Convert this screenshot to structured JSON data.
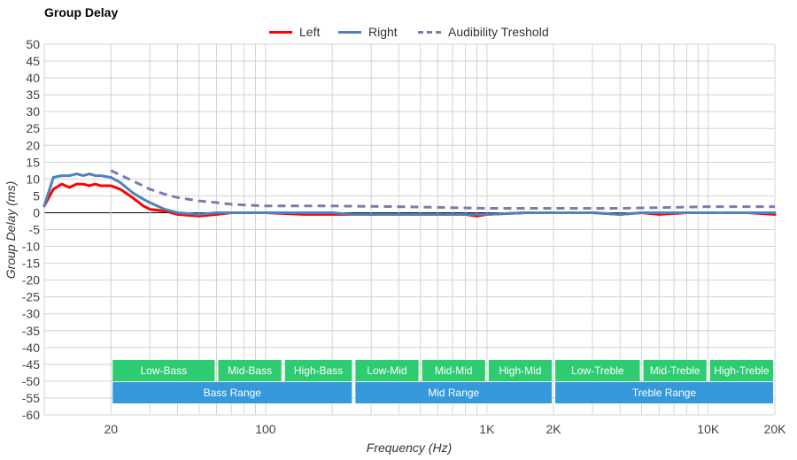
{
  "chart_data": {
    "type": "line",
    "title": "Group Delay",
    "xlabel": "Frequency (Hz)",
    "ylabel": "Group Delay (ms)",
    "x_scale": "log",
    "xlim": [
      10,
      20000
    ],
    "ylim": [
      -60,
      50
    ],
    "y_ticks": [
      50,
      45,
      40,
      35,
      30,
      25,
      20,
      15,
      10,
      5,
      0,
      -5,
      -10,
      -15,
      -20,
      -25,
      -30,
      -35,
      -40,
      -45,
      -50,
      -55,
      -60
    ],
    "x_tick_labels": [
      {
        "value": 20,
        "label": "20"
      },
      {
        "value": 100,
        "label": "100"
      },
      {
        "value": 1000,
        "label": "1K"
      },
      {
        "value": 2000,
        "label": "2K"
      },
      {
        "value": 10000,
        "label": "10K"
      },
      {
        "value": 20000,
        "label": "20K"
      }
    ],
    "grid": true,
    "legend_position": "top-center",
    "series": [
      {
        "name": "Left",
        "color": "#ff0000",
        "style": "solid",
        "x": [
          10,
          11,
          12,
          13,
          14,
          15,
          16,
          17,
          18,
          20,
          22,
          25,
          28,
          30,
          35,
          40,
          50,
          60,
          70,
          80,
          100,
          150,
          200,
          250,
          300,
          400,
          600,
          800,
          900,
          1000,
          1500,
          2000,
          3000,
          4000,
          5000,
          6000,
          8000,
          10000,
          15000,
          20000
        ],
        "y": [
          2,
          7,
          8.5,
          7.5,
          8.5,
          8.5,
          8,
          8.5,
          8,
          8,
          7,
          4.5,
          2,
          1,
          0.5,
          -0.5,
          -1,
          -0.5,
          0,
          0,
          0,
          -0.5,
          -0.5,
          -0.5,
          -0.5,
          -0.5,
          -0.5,
          -0.5,
          -1,
          -0.5,
          0,
          0,
          0,
          -0.5,
          0,
          -0.5,
          0,
          0,
          0,
          -0.5
        ]
      },
      {
        "name": "Right",
        "color": "#4f81bd",
        "style": "solid",
        "x": [
          10,
          11,
          12,
          13,
          14,
          15,
          16,
          17,
          18,
          20,
          22,
          25,
          28,
          30,
          35,
          40,
          50,
          60,
          70,
          80,
          100,
          150,
          200,
          250,
          300,
          400,
          600,
          800,
          900,
          1000,
          1500,
          2000,
          3000,
          4000,
          5000,
          6000,
          8000,
          10000,
          15000,
          20000
        ],
        "y": [
          2,
          10.5,
          11,
          11,
          11.5,
          11,
          11.5,
          11,
          11,
          10.5,
          9,
          6,
          4,
          3,
          1,
          0,
          -0.5,
          0,
          0,
          0,
          0,
          0,
          0,
          -0.5,
          -0.5,
          -0.5,
          -0.5,
          -0.5,
          -0.5,
          -0.5,
          0,
          0,
          0,
          -0.5,
          0,
          0,
          0,
          0,
          0,
          0
        ]
      },
      {
        "name": "Audibility Treshold",
        "color": "#7b7bb0",
        "style": "dashed",
        "x": [
          20,
          25,
          30,
          35,
          40,
          50,
          60,
          70,
          80,
          100,
          200,
          400,
          1000,
          2000,
          4000,
          6000,
          10000,
          20000
        ],
        "y": [
          12.5,
          9.5,
          7,
          5.5,
          4.5,
          3.5,
          3,
          2.5,
          2.3,
          2,
          2,
          1.8,
          1.3,
          1.3,
          1.3,
          1.5,
          1.8,
          1.8
        ]
      }
    ],
    "ranges": [
      {
        "label": "Low-Bass",
        "from": 20,
        "to": 60,
        "row": 1,
        "color": "#2ecc71"
      },
      {
        "label": "Mid-Bass",
        "from": 60,
        "to": 120,
        "row": 1,
        "color": "#2ecc71"
      },
      {
        "label": "High-Bass",
        "from": 120,
        "to": 250,
        "row": 1,
        "color": "#2ecc71"
      },
      {
        "label": "Low-Mid",
        "from": 250,
        "to": 500,
        "row": 1,
        "color": "#2ecc71"
      },
      {
        "label": "Mid-Mid",
        "from": 500,
        "to": 1000,
        "row": 1,
        "color": "#2ecc71"
      },
      {
        "label": "High-Mid",
        "from": 1000,
        "to": 2000,
        "row": 1,
        "color": "#2ecc71"
      },
      {
        "label": "Low-Treble",
        "from": 2000,
        "to": 5000,
        "row": 1,
        "color": "#2ecc71"
      },
      {
        "label": "Mid-Treble",
        "from": 5000,
        "to": 10000,
        "row": 1,
        "color": "#2ecc71"
      },
      {
        "label": "High-Treble",
        "from": 10000,
        "to": 20000,
        "row": 1,
        "color": "#2ecc71"
      },
      {
        "label": "Bass Range",
        "from": 20,
        "to": 250,
        "row": 2,
        "color": "#3498db"
      },
      {
        "label": "Mid Range",
        "from": 250,
        "to": 2000,
        "row": 2,
        "color": "#3498db"
      },
      {
        "label": "Treble Range",
        "from": 2000,
        "to": 20000,
        "row": 2,
        "color": "#3498db"
      }
    ]
  }
}
